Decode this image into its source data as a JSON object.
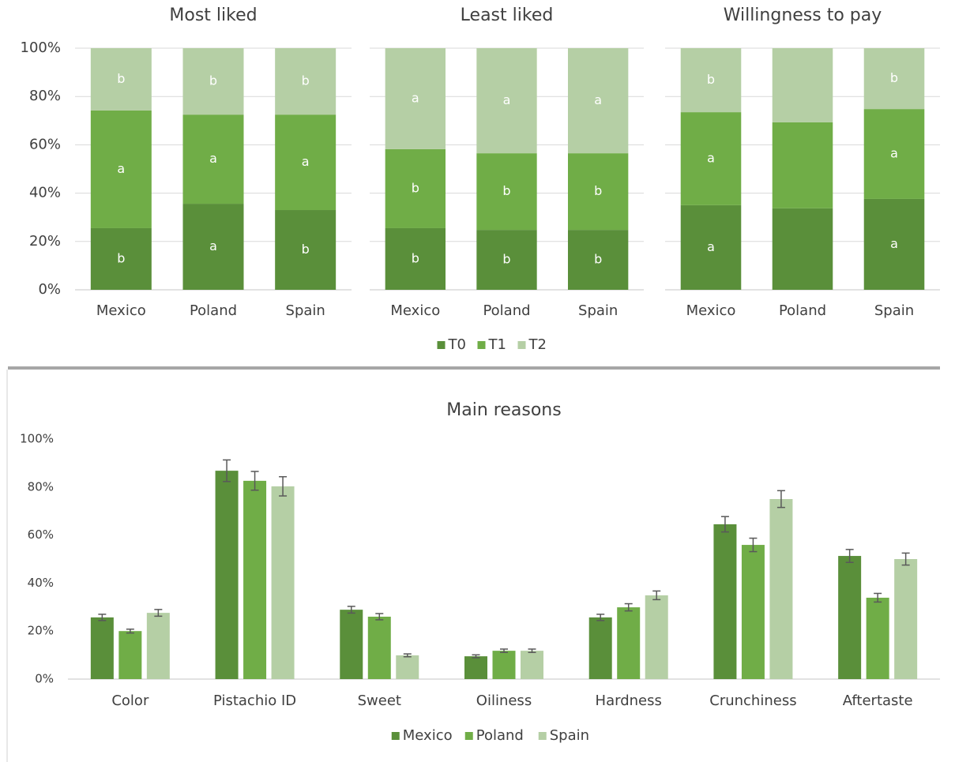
{
  "chart_data": [
    {
      "type": "bar",
      "stacked": true,
      "title": "Most liked",
      "categories": [
        "Mexico",
        "Poland",
        "Spain"
      ],
      "ylim": [
        0,
        100
      ],
      "yticks": [
        {
          "value": 0,
          "label": "0%"
        },
        {
          "value": 20,
          "label": "20%"
        },
        {
          "value": 40,
          "label": "40%"
        },
        {
          "value": 60,
          "label": "60%"
        },
        {
          "value": 80,
          "label": "80%"
        },
        {
          "value": 100,
          "label": "100%"
        }
      ],
      "grid": true,
      "series": [
        {
          "name": "T0",
          "color": "#5a8f3a",
          "values": [
            25.5,
            35.6,
            33
          ],
          "letters": [
            "b",
            "a",
            "b"
          ]
        },
        {
          "name": "T1",
          "color": "#70ad47",
          "values": [
            48.7,
            36.9,
            39.5
          ],
          "letters": [
            "a",
            "a",
            "a"
          ]
        },
        {
          "name": "T2",
          "color": "#b5cfa5",
          "values": [
            25.8,
            27.5,
            27.5
          ],
          "letters": [
            "b",
            "b",
            "b"
          ]
        }
      ]
    },
    {
      "type": "bar",
      "stacked": true,
      "title": "Least liked",
      "categories": [
        "Mexico",
        "Poland",
        "Spain"
      ],
      "ylim": [
        0,
        100
      ],
      "yticks": [
        0,
        20,
        40,
        60,
        80,
        100
      ],
      "grid": true,
      "series": [
        {
          "color": "#5a8f3a",
          "values": [
            25.5,
            24.8,
            24.8
          ],
          "letters": [
            "b",
            "b",
            "b"
          ]
        },
        {
          "color": "#70ad47",
          "values": [
            32.7,
            31.7,
            31.7
          ],
          "letters": [
            "b",
            "b",
            "b"
          ]
        },
        {
          "color": "#b5cfa5",
          "values": [
            41.8,
            43.5,
            43.5
          ],
          "letters": [
            "a",
            "a",
            "a"
          ]
        }
      ]
    },
    {
      "type": "bar",
      "stacked": true,
      "title": "Willingness to pay",
      "categories": [
        "Mexico",
        "Poland",
        "Spain"
      ],
      "ylim": [
        0,
        100
      ],
      "yticks": [
        0,
        20,
        40,
        60,
        80,
        100
      ],
      "grid": true,
      "series": [
        {
          "color": "#5a8f3a",
          "values": [
            35,
            33.7,
            37.6
          ],
          "letters": [
            "a",
            null,
            "a"
          ]
        },
        {
          "color": "#70ad47",
          "values": [
            38.5,
            35.6,
            37.2
          ],
          "letters": [
            "a",
            null,
            "a"
          ]
        },
        {
          "color": "#b5cfa5",
          "values": [
            26.5,
            30.7,
            25.2
          ],
          "letters": [
            "b",
            null,
            "b"
          ]
        }
      ]
    },
    {
      "type": "bar",
      "stacked": false,
      "title": "Main reasons",
      "categories": [
        "Color",
        "Pistachio ID",
        "Sweet",
        "Oiliness",
        "Hardness",
        "Crunchiness",
        "Aftertaste"
      ],
      "ylim": [
        0,
        100
      ],
      "yticks": [
        {
          "value": 0,
          "label": "0%"
        },
        {
          "value": 20,
          "label": "20%"
        },
        {
          "value": 40,
          "label": "40%"
        },
        {
          "value": 60,
          "label": "60%"
        },
        {
          "value": 80,
          "label": "80%"
        },
        {
          "value": 100,
          "label": "100%"
        }
      ],
      "grid": false,
      "series": [
        {
          "name": "Mexico",
          "color": "#5a8f3a",
          "values": [
            25.7,
            86.8,
            28.9,
            9.5,
            25.7,
            64.5,
            51.3
          ],
          "errors": [
            1.3,
            4.5,
            1.4,
            0.6,
            1.3,
            3.2,
            2.7
          ]
        },
        {
          "name": "Poland",
          "color": "#70ad47",
          "values": [
            20,
            82.6,
            26,
            11.8,
            29.9,
            55.9,
            33.9
          ],
          "errors": [
            0.8,
            3.9,
            1.3,
            0.7,
            1.5,
            2.8,
            1.8
          ]
        },
        {
          "name": "Spain",
          "color": "#b5cfa5",
          "values": [
            27.6,
            80.3,
            9.9,
            11.8,
            34.9,
            75,
            50
          ],
          "errors": [
            1.4,
            4,
            0.6,
            0.7,
            1.8,
            3.5,
            2.5
          ]
        }
      ]
    }
  ]
}
